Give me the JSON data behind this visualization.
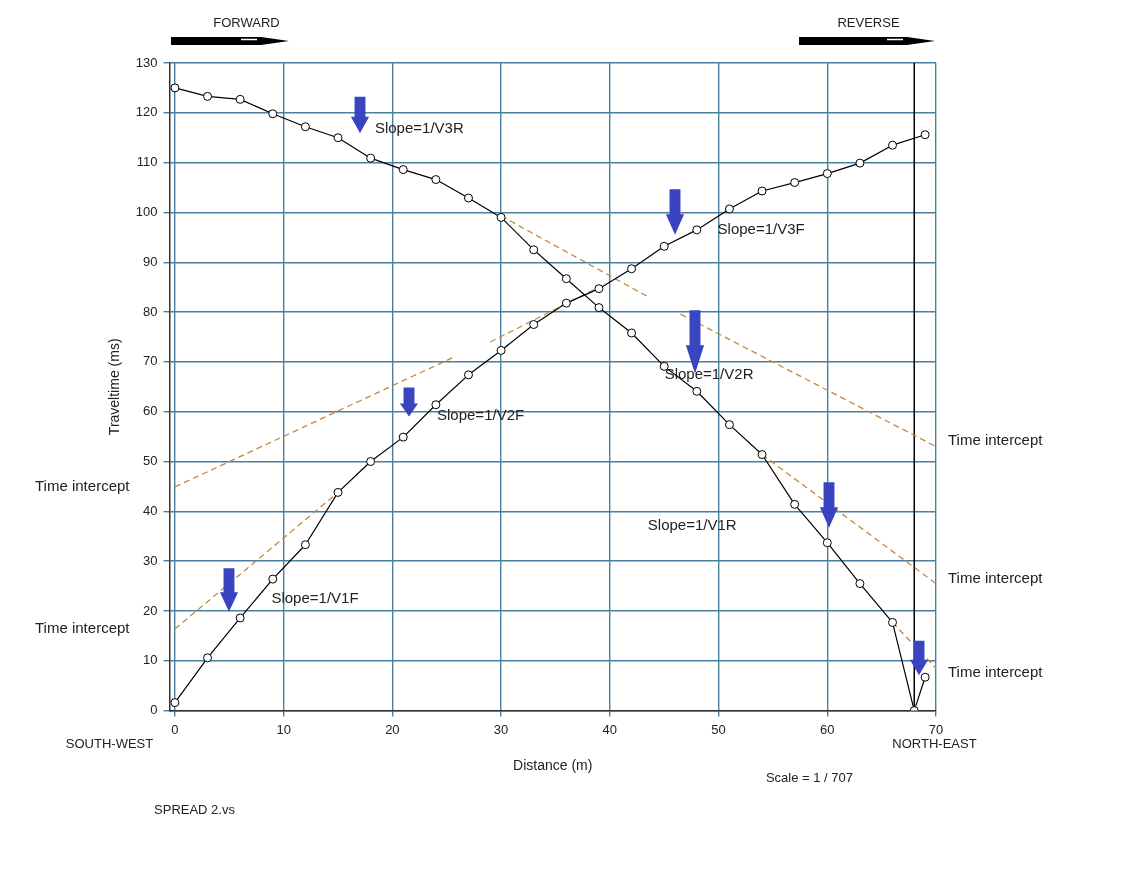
{
  "chart_data": {
    "type": "line",
    "xlabel": "Distance (m)",
    "ylabel": "Traveltime (ms)",
    "xlim": [
      -0.5,
      70
    ],
    "xticks": [
      0,
      10,
      20,
      30,
      40,
      50,
      60,
      70
    ],
    "ylim": [
      0,
      130
    ],
    "yticks": [
      0,
      10,
      20,
      30,
      40,
      50,
      60,
      70,
      80,
      90,
      100,
      110,
      120,
      130
    ],
    "grid": true,
    "marker": "circle",
    "series": [
      {
        "color": "#000000",
        "x": [
          0,
          3,
          6,
          9,
          12,
          15,
          18,
          21,
          24,
          27,
          30,
          33,
          36,
          39,
          42,
          45,
          48,
          51,
          54,
          57,
          60,
          63,
          66,
          69
        ],
        "values": [
          1.6,
          10.6,
          18.6,
          26.4,
          33.3,
          43.8,
          50.0,
          54.9,
          61.4,
          67.4,
          72.3,
          77.5,
          81.8,
          84.7,
          88.7,
          93.2,
          96.5,
          100.7,
          104.3,
          106.0,
          107.8,
          109.9,
          113.5,
          115.6
        ]
      },
      {
        "color": "#000000",
        "x": [
          0,
          3,
          6,
          9,
          12,
          15,
          18,
          21,
          24,
          27,
          30,
          33,
          36,
          39,
          42,
          45,
          48,
          51,
          54,
          57,
          60,
          63,
          66,
          68,
          69
        ],
        "values": [
          125,
          123.3,
          122.7,
          119.8,
          117.2,
          115.0,
          110.9,
          108.6,
          106.6,
          102.9,
          99.0,
          92.5,
          86.7,
          80.9,
          75.8,
          69.1,
          64.1,
          57.4,
          51.4,
          41.4,
          33.7,
          25.5,
          17.7,
          0,
          6.7
        ]
      },
      {
        "type": "line",
        "color": "#c8873a",
        "line_style": "dashed",
        "marker": "none",
        "x": [
          0,
          15
        ],
        "values": [
          16.4,
          43.8
        ]
      },
      {
        "type": "line",
        "color": "#c8873a",
        "line_style": "dashed",
        "marker": "none",
        "x": [
          0,
          25.5
        ],
        "values": [
          44.9,
          70.8
        ]
      },
      {
        "type": "line",
        "color": "#c8873a",
        "line_style": "dashed",
        "marker": "none",
        "x": [
          29,
          39
        ],
        "values": [
          74,
          85
        ]
      },
      {
        "type": "line",
        "color": "#c8873a",
        "line_style": "dashed",
        "marker": "none",
        "x": [
          30,
          43.5
        ],
        "values": [
          99.3,
          83.1
        ]
      },
      {
        "type": "line",
        "color": "#c8873a",
        "line_style": "dashed",
        "marker": "none",
        "x": [
          46.5,
          70
        ],
        "values": [
          79.6,
          53.0
        ]
      },
      {
        "type": "line",
        "color": "#c8873a",
        "line_style": "dashed",
        "marker": "none",
        "x": [
          54,
          70
        ],
        "values": [
          51.4,
          25.5
        ]
      },
      {
        "type": "line",
        "color": "#c8873a",
        "line_style": "dashed",
        "marker": "none",
        "x": [
          66,
          70
        ],
        "values": [
          17.7,
          8.5
        ]
      }
    ],
    "ref_lines": [
      {
        "axis": "x",
        "value": 68,
        "color": "#000000"
      }
    ],
    "annotations": [
      "FORWARD",
      "REVERSE",
      "SOUTH-WEST",
      "NORTH-EAST",
      "Scale = 1 / 707",
      "SPREAD 2.vs",
      "Slope=1/V3R",
      "Slope=1/V3F",
      "Slope=1/V2R",
      "Slope=1/V2F",
      "Slope=1/V1R",
      "Slope=1/V1F",
      "Time intercept",
      "Time intercept",
      "Time intercept",
      "Time intercept",
      "Time intercept"
    ]
  }
}
